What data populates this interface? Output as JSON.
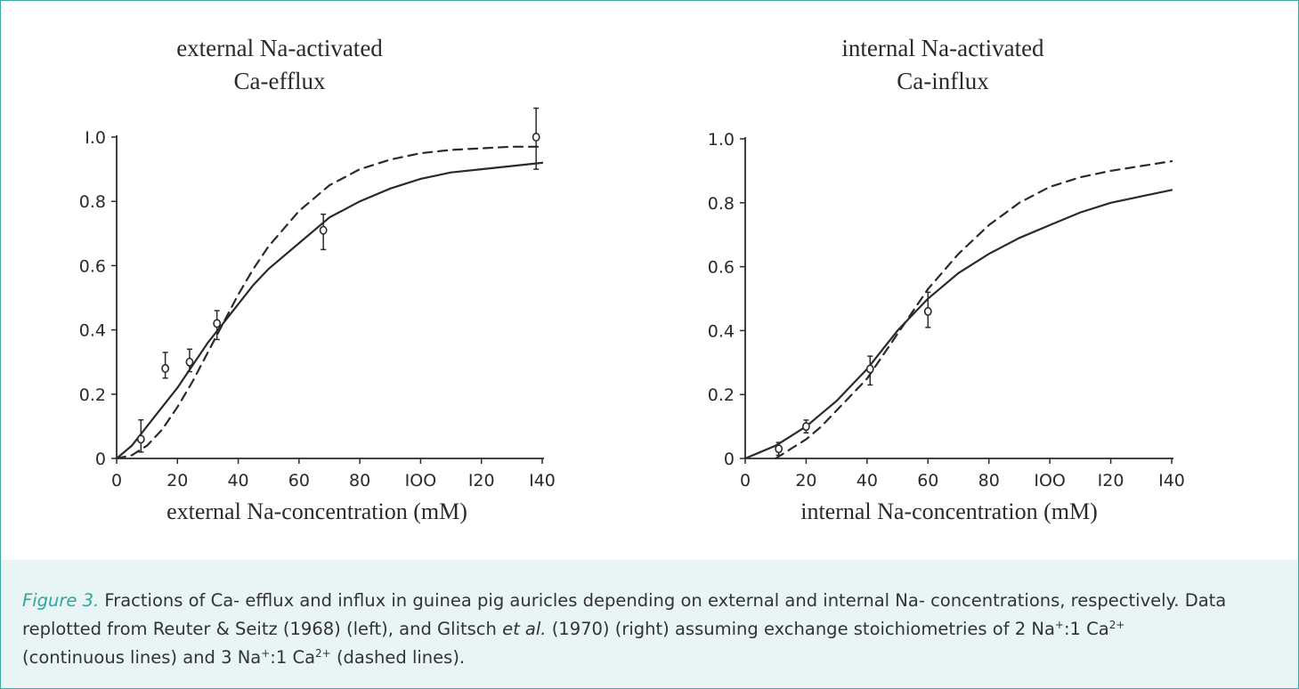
{
  "chart_data": [
    {
      "type": "line",
      "title": [
        "external Na-activated",
        "Ca-efflux"
      ],
      "xlabel": "external Na-concentration (mM)",
      "ylabel": "",
      "xlim": [
        0,
        140
      ],
      "ylim": [
        0,
        1.0
      ],
      "x_ticks": [
        0,
        20,
        40,
        60,
        80,
        100,
        120,
        140
      ],
      "x_tick_labels": [
        "0",
        "20",
        "40",
        "60",
        "80",
        "IOO",
        "I20",
        "I40"
      ],
      "y_ticks": [
        0,
        0.2,
        0.4,
        0.6,
        0.8,
        1.0
      ],
      "y_tick_labels": [
        "0",
        "0.2",
        "0.4",
        "0.6",
        "0.8",
        "I.0"
      ],
      "grid": false,
      "series": [
        {
          "style": "solid",
          "kind": "curve",
          "x": [
            0,
            5,
            10,
            15,
            20,
            25,
            30,
            35,
            40,
            45,
            50,
            60,
            70,
            80,
            90,
            100,
            110,
            120,
            130,
            140
          ],
          "y": [
            0,
            0.04,
            0.1,
            0.16,
            0.22,
            0.29,
            0.36,
            0.42,
            0.48,
            0.54,
            0.59,
            0.67,
            0.75,
            0.8,
            0.84,
            0.87,
            0.89,
            0.9,
            0.91,
            0.92
          ]
        },
        {
          "style": "dashed",
          "kind": "curve",
          "x": [
            0,
            5,
            10,
            15,
            20,
            25,
            30,
            35,
            40,
            45,
            50,
            60,
            70,
            80,
            90,
            100,
            110,
            120,
            130,
            140
          ],
          "y": [
            0,
            0.01,
            0.04,
            0.09,
            0.16,
            0.24,
            0.33,
            0.42,
            0.51,
            0.59,
            0.66,
            0.77,
            0.85,
            0.9,
            0.93,
            0.95,
            0.96,
            0.965,
            0.97,
            0.97
          ]
        },
        {
          "kind": "points",
          "x": [
            8,
            16,
            24,
            33,
            68,
            138
          ],
          "y": [
            0.06,
            0.28,
            0.3,
            0.42,
            0.71,
            1.0
          ],
          "err_low": [
            0.04,
            0.03,
            0.03,
            0.05,
            0.06,
            0.1
          ],
          "err_high": [
            0.06,
            0.05,
            0.04,
            0.04,
            0.05,
            0.09
          ]
        }
      ]
    },
    {
      "type": "line",
      "title": [
        "internal Na-activated",
        "Ca-influx"
      ],
      "xlabel": "internal Na-concentration (mM)",
      "ylabel": "",
      "xlim": [
        0,
        140
      ],
      "ylim": [
        0,
        1.0
      ],
      "x_ticks": [
        0,
        20,
        40,
        60,
        80,
        100,
        120,
        140
      ],
      "x_tick_labels": [
        "0",
        "20",
        "40",
        "60",
        "80",
        "IOO",
        "I20",
        "I40"
      ],
      "y_ticks": [
        0,
        0.2,
        0.4,
        0.6,
        0.8,
        1.0
      ],
      "y_tick_labels": [
        "0",
        "0.2",
        "0.4",
        "0.6",
        "0.8",
        "1.0"
      ],
      "grid": false,
      "series": [
        {
          "style": "solid",
          "kind": "curve",
          "x": [
            0,
            5,
            10,
            15,
            20,
            25,
            30,
            35,
            40,
            45,
            50,
            55,
            60,
            70,
            80,
            90,
            100,
            110,
            120,
            130,
            140
          ],
          "y": [
            0,
            0.02,
            0.04,
            0.07,
            0.1,
            0.14,
            0.18,
            0.23,
            0.28,
            0.34,
            0.4,
            0.45,
            0.5,
            0.58,
            0.64,
            0.69,
            0.73,
            0.77,
            0.8,
            0.82,
            0.84
          ]
        },
        {
          "style": "dashed",
          "kind": "curve",
          "x": [
            10,
            15,
            20,
            25,
            30,
            35,
            40,
            45,
            50,
            55,
            60,
            70,
            80,
            90,
            100,
            110,
            120,
            130,
            140
          ],
          "y": [
            0,
            0.03,
            0.06,
            0.1,
            0.15,
            0.2,
            0.25,
            0.32,
            0.39,
            0.46,
            0.53,
            0.64,
            0.73,
            0.8,
            0.85,
            0.88,
            0.9,
            0.915,
            0.93
          ]
        },
        {
          "kind": "points",
          "x": [
            11,
            20,
            41,
            60
          ],
          "y": [
            0.03,
            0.1,
            0.28,
            0.46
          ],
          "err_low": [
            0.02,
            0.02,
            0.05,
            0.05
          ],
          "err_high": [
            0.02,
            0.02,
            0.04,
            0.06
          ]
        }
      ]
    }
  ],
  "caption": {
    "label": "Figure 3.",
    "line1": "Fractions of Ca- efflux and influx in guinea pig auricles depending on external and internal Na- concentrations, respectively. Data",
    "line2_a": "replotted from Reuter & Seitz (1968) (left), and Glitsch ",
    "line2_b": "et al.",
    "line2_c": " (1970) (right) assuming exchange stoichiometries of 2 Na",
    "line2_d": ":1 Ca",
    "line3_a": "(continuous lines) and 3 Na",
    "line3_b": ":1 Ca",
    "line3_c": " (dashed lines).",
    "sup_plus": "+",
    "sup_2plus": "2+"
  }
}
